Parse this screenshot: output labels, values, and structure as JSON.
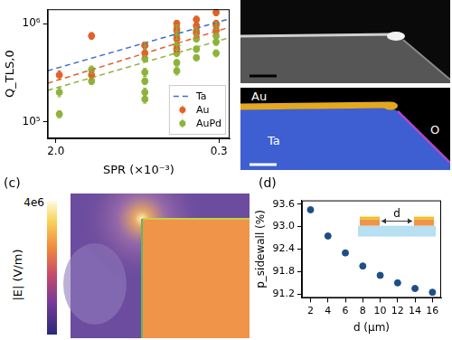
{
  "chart_data": [
    {
      "type": "scatter",
      "x_label": "SPR (×10⁻³)",
      "y_label": "Q_TLS,0",
      "log": true,
      "grid": false,
      "legend": "lower right",
      "xlim": [
        2.2,
        0.265
      ],
      "xticks": [
        {
          "value": 2,
          "label": "2.0"
        },
        0.3
      ],
      "ylim": [
        68000,
        1400000
      ],
      "yticks": [
        {
          "value": 100000,
          "label": "10⁵"
        },
        {
          "value": 1000000,
          "label": "10⁶"
        }
      ],
      "series": [
        {
          "name": "Ta",
          "type": "line",
          "line_style": "dashed",
          "color": "#3d6fc9",
          "x": [
            2.2,
            0.265
          ],
          "values": [
            331000,
            1120000
          ]
        },
        {
          "name": "Au",
          "type": "scatter",
          "marker": "circle",
          "color": "#e0622a",
          "x": [
            1.92,
            1.32,
            1.32,
            0.71,
            0.71,
            0.49,
            0.49,
            0.49,
            0.49,
            0.39,
            0.39,
            0.39,
            0.31,
            0.31,
            0.31
          ],
          "values": [
            300000,
            750000,
            300000,
            600000,
            500000,
            1000000,
            850000,
            700000,
            550000,
            1100000,
            950000,
            800000,
            1300000,
            1000000,
            850000
          ],
          "errors": [
            30000,
            60000,
            25000,
            50000,
            40000,
            80000,
            60000,
            50000,
            40000,
            90000,
            70000,
            60000,
            100000,
            80000,
            60000
          ],
          "fit": {
            "line_style": "dashed",
            "x": [
              2.2,
              0.265
            ],
            "values": [
              247000,
              920000
            ]
          }
        },
        {
          "name": "AuPd",
          "type": "scatter",
          "marker": "circle",
          "color": "#8db33a",
          "x": [
            1.92,
            1.92,
            1.32,
            1.32,
            0.71,
            0.71,
            0.71,
            0.71,
            0.71,
            0.71,
            0.49,
            0.49,
            0.49,
            0.49,
            0.49,
            0.49,
            0.39,
            0.39,
            0.39,
            0.39,
            0.31,
            0.31,
            0.31,
            0.31
          ],
          "values": [
            200000,
            120000,
            340000,
            260000,
            600000,
            440000,
            320000,
            260000,
            200000,
            170000,
            900000,
            750000,
            600000,
            500000,
            400000,
            330000,
            850000,
            700000,
            550000,
            450000,
            950000,
            750000,
            650000,
            500000
          ],
          "errors": [
            20000,
            10000,
            30000,
            20000,
            50000,
            30000,
            30000,
            20000,
            20000,
            15000,
            70000,
            60000,
            50000,
            40000,
            30000,
            30000,
            70000,
            50000,
            40000,
            30000,
            80000,
            60000,
            50000,
            40000
          ],
          "fit": {
            "line_style": "dashed",
            "x": [
              2.2,
              0.265
            ],
            "values": [
              209000,
              720000
            ]
          }
        }
      ]
    },
    {
      "type": "scatter",
      "x_label": "d (μm)",
      "y_label": "p_sidewall (%)",
      "grid": false,
      "annotation": "d",
      "xlim": [
        1,
        17
      ],
      "xticks": [
        2,
        4,
        6,
        8,
        10,
        12,
        14,
        16
      ],
      "ylim": [
        91.1,
        93.7
      ],
      "yticks": [
        91.2,
        91.8,
        92.4,
        {
          "value": 93,
          "label": "93.0"
        },
        93.6
      ],
      "series": [
        {
          "type": "scatter",
          "marker": "circle",
          "color": "#1f4e86",
          "x": [
            2,
            4,
            6,
            8,
            10,
            12,
            14,
            16
          ],
          "values": [
            93.45,
            92.75,
            92.3,
            91.95,
            91.7,
            91.5,
            91.35,
            91.25
          ]
        }
      ]
    }
  ],
  "panels": {
    "images": {
      "eds_labels": [
        "Au",
        "Ta",
        "O"
      ]
    },
    "c": {
      "letter": "(c)",
      "colorbar": {
        "label": "|E| (V/m)",
        "range": [
          0,
          4000000
        ],
        "ticks": [
          {
            "value": 4000000,
            "label": "4e6"
          }
        ]
      }
    },
    "d": {
      "letter": "(d)"
    }
  }
}
